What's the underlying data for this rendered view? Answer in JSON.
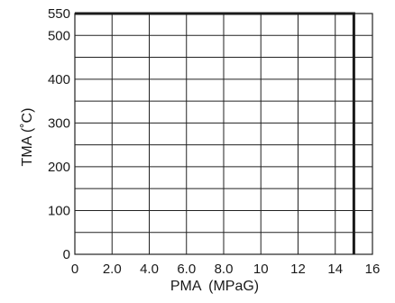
{
  "chart_data": {
    "type": "line",
    "title": "",
    "xlabel": "PMA",
    "xlabel_unit": "(MPaG)",
    "ylabel": "TMA (˚C)",
    "xlim": [
      0,
      16
    ],
    "ylim": [
      0,
      550
    ],
    "grid": true,
    "x_ticks": [
      0,
      2,
      4,
      6,
      8,
      10,
      12,
      14,
      16
    ],
    "x_tick_labels": [
      "0",
      "2.0",
      "4.0",
      "6.0",
      "8.0",
      "10",
      "12",
      "14",
      "16"
    ],
    "y_ticks": [
      0,
      100,
      200,
      300,
      400,
      500,
      550
    ],
    "y_tick_labels": [
      "0",
      "100",
      "200",
      "300",
      "400",
      "500",
      "550"
    ],
    "x_grid": [
      0,
      2,
      4,
      6,
      8,
      10,
      12,
      14,
      16
    ],
    "y_grid": [
      0,
      50,
      100,
      150,
      200,
      250,
      300,
      350,
      400,
      450,
      500,
      550
    ],
    "series": [
      {
        "x": [
          0,
          15,
          15
        ],
        "y": [
          550,
          550,
          0
        ],
        "color": "#1a1a1a"
      }
    ]
  }
}
